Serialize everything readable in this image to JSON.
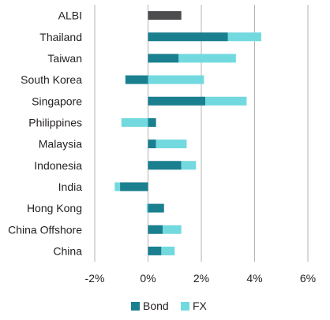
{
  "chart_data": {
    "type": "bar",
    "orientation": "horizontal",
    "stacked": true,
    "title": "",
    "xlabel": "",
    "ylabel": "",
    "categories": [
      "ALBI",
      "Thailand",
      "Taiwan",
      "South Korea",
      "Singapore",
      "Philippines",
      "Malaysia",
      "Indonesia",
      "India",
      "Hong Kong",
      "China Offshore",
      "China"
    ],
    "series": [
      {
        "name": "Bond",
        "color": "#1a7f8f",
        "values": [
          null,
          3.0,
          1.15,
          -0.85,
          2.15,
          0.3,
          0.3,
          1.25,
          -1.05,
          0.6,
          0.55,
          0.5
        ]
      },
      {
        "name": "FX",
        "color": "#72d9df",
        "values": [
          null,
          1.25,
          2.15,
          2.1,
          1.55,
          -1.0,
          1.15,
          0.55,
          -0.2,
          -0.05,
          0.7,
          0.5
        ]
      }
    ],
    "total_series": {
      "category": "ALBI",
      "value": 1.25,
      "color": "#4d4d4f"
    },
    "xlim": [
      -2,
      6
    ],
    "xticks": [
      "-2%",
      "0%",
      "2%",
      "4%",
      "6%"
    ],
    "xtick_values": [
      -2,
      0,
      2,
      4,
      6
    ],
    "grid": "vertical",
    "legend": {
      "position": "bottom",
      "items": [
        "Bond",
        "FX"
      ]
    }
  }
}
